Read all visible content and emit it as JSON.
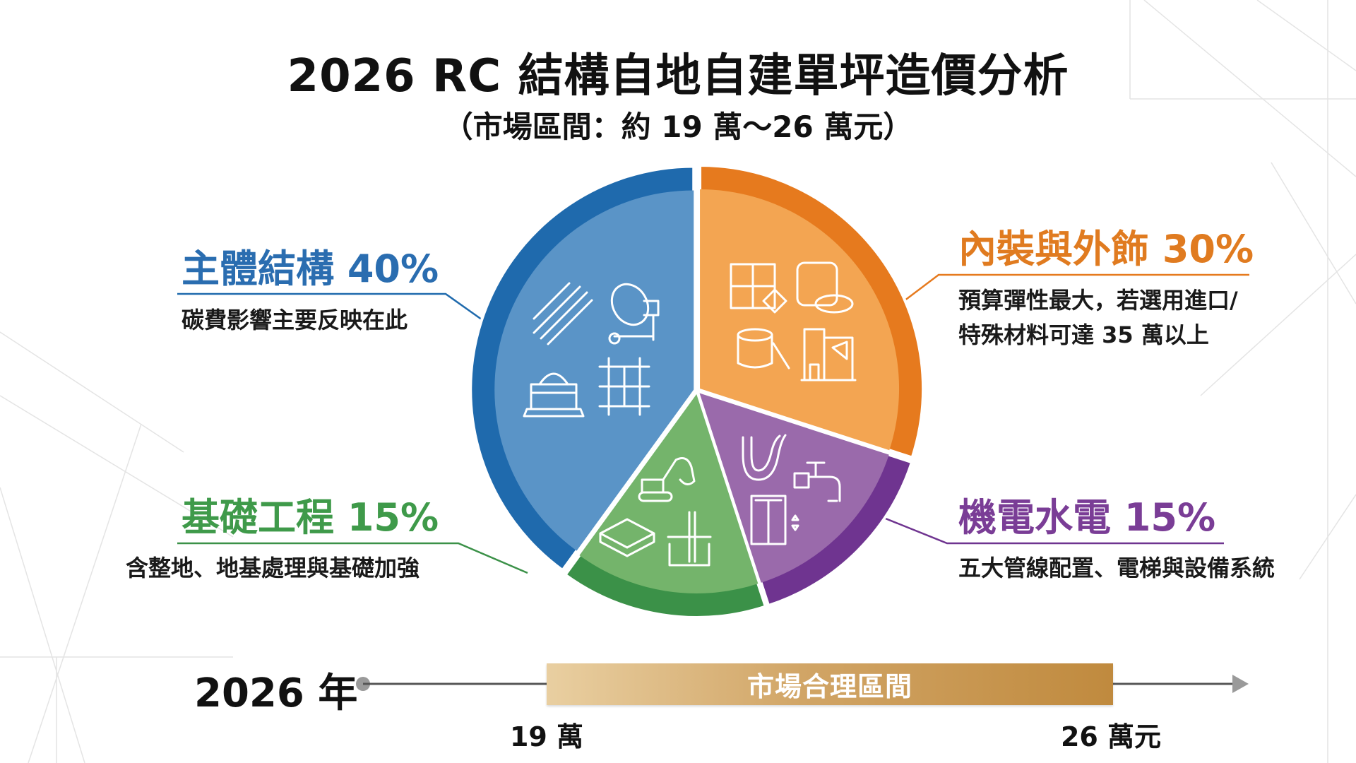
{
  "chart_data": {
    "type": "pie",
    "title": "2026 RC 結構自地自建單坪造價分析",
    "subtitle": "（市場區間：約 19 萬～26 萬元）",
    "start_angle_deg": 0,
    "direction": "clockwise",
    "slices": [
      {
        "label": "內裝與外飾",
        "value": 30,
        "value_label": "30%",
        "desc": [
          "預算彈性最大，若選用進口/",
          "特殊材料可達 35 萬以上"
        ],
        "color": "#e67a1e",
        "light": "#f3a552",
        "icons": [
          "tile-icon",
          "stone-icon",
          "paint-bucket-icon",
          "interior-room-icon"
        ]
      },
      {
        "label": "機電水電",
        "value": 15,
        "value_label": "15%",
        "desc": [
          "五大管線配置、電梯與設備系統"
        ],
        "color": "#6f3490",
        "light": "#9a6aab",
        "icons": [
          "cables-icon",
          "faucet-icon",
          "elevator-icon"
        ]
      },
      {
        "label": "基礎工程",
        "value": 15,
        "value_label": "15%",
        "desc": [
          "含整地、地基處理與基礎加強"
        ],
        "color": "#3b9148",
        "light": "#74b46b",
        "icons": [
          "excavator-icon",
          "soil-layer-icon",
          "foundation-pile-icon"
        ]
      },
      {
        "label": "主體結構",
        "value": 40,
        "value_label": "40%",
        "desc": [
          "碳費影響主要反映在此"
        ],
        "color": "#1f6aad",
        "light": "#5a94c7",
        "icons": [
          "rebar-icon",
          "cement-mixer-icon",
          "sand-pile-icon",
          "formwork-icon"
        ]
      }
    ]
  },
  "timeline": {
    "year_label": "2026 年",
    "bar_label": "市場合理區間",
    "min_label": "19 萬",
    "max_label": "26 萬元",
    "range": [
      19,
      26
    ],
    "unit": "萬元",
    "bar_color": "#c99a52"
  }
}
